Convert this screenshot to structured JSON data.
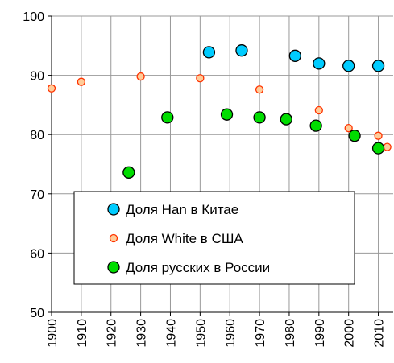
{
  "chart_data": {
    "type": "scatter",
    "xlim": [
      1900,
      2015
    ],
    "xticks": [
      1900,
      1910,
      1920,
      1930,
      1940,
      1950,
      1960,
      1970,
      1980,
      1990,
      2000,
      2010
    ],
    "ylim": [
      50,
      100
    ],
    "yticks": [
      50,
      60,
      70,
      80,
      90,
      100
    ],
    "grid": true,
    "legend": "bottom-left",
    "series": [
      {
        "name": "Доля Han в Китае",
        "color": "#00ccff",
        "size": 7,
        "x": [
          1953,
          1964,
          1982,
          1990,
          2000,
          2010
        ],
        "values": [
          93.9,
          94.2,
          93.3,
          92.0,
          91.6,
          91.6
        ]
      },
      {
        "name": "Доля White в США",
        "color": "#ff3300",
        "size": 4.5,
        "x": [
          1900,
          1910,
          1930,
          1950,
          1970,
          1990,
          2000,
          2010,
          2013
        ],
        "values": [
          87.8,
          88.9,
          89.8,
          89.5,
          87.6,
          84.1,
          81.1,
          79.8,
          77.9
        ]
      },
      {
        "name": "Доля русских в России",
        "color": "#00dd00",
        "size": 7,
        "x": [
          1926,
          1939,
          1959,
          1970,
          1979,
          1989,
          2002,
          2010
        ],
        "values": [
          73.6,
          82.9,
          83.4,
          82.9,
          82.6,
          81.5,
          79.8,
          77.7
        ]
      }
    ]
  }
}
